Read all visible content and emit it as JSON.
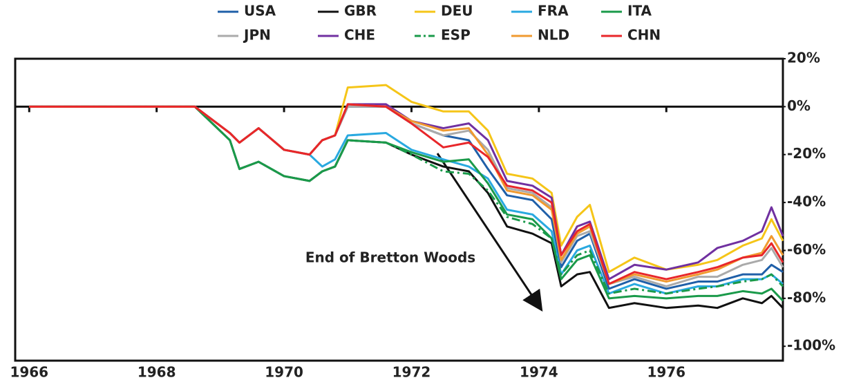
{
  "chart_data": {
    "type": "line",
    "annotation": "End of Bretton Woods",
    "x": [
      1966.0,
      1968.6,
      1969.15,
      1969.3,
      1969.6,
      1970.0,
      1970.4,
      1970.6,
      1970.8,
      1971.0,
      1971.6,
      1972.0,
      1972.5,
      1972.9,
      1973.2,
      1973.5,
      1973.9,
      1974.2,
      1974.35,
      1974.6,
      1974.8,
      1975.1,
      1975.5,
      1976.0,
      1976.5,
      1976.8,
      1977.2,
      1977.5,
      1977.65,
      1977.83
    ],
    "series": [
      {
        "name": "USA",
        "color": "#1f5fa8",
        "values": [
          0,
          0,
          -11,
          -15,
          -9,
          -18,
          -20,
          -14,
          -12,
          0,
          0,
          -7,
          -12,
          -14,
          -26,
          -37,
          -39,
          -47,
          -67,
          -56,
          -53,
          -76,
          -72,
          -76,
          -73,
          -73,
          -70,
          -70,
          -66,
          -69
        ]
      },
      {
        "name": "GBR",
        "color": "#111111",
        "values": [
          0,
          0,
          -14,
          -26,
          -23,
          -29,
          -31,
          -27,
          -25,
          -14,
          -15,
          -20,
          -25,
          -27,
          -36,
          -50,
          -53,
          -57,
          -75,
          -70,
          -69,
          -84,
          -82,
          -84,
          -83,
          -84,
          -80,
          -82,
          -79,
          -84
        ]
      },
      {
        "name": "DEU",
        "color": "#f5c518",
        "values": [
          0,
          0,
          -11,
          -15,
          -9,
          -18,
          -20,
          -14,
          -12,
          8,
          9,
          2,
          -2,
          -2,
          -10,
          -28,
          -30,
          -36,
          -58,
          -46,
          -41,
          -69,
          -63,
          -68,
          -66,
          -64,
          -58,
          -55,
          -47,
          -56
        ]
      },
      {
        "name": "FRA",
        "color": "#29a9e0",
        "values": [
          0,
          0,
          -11,
          -15,
          -9,
          -18,
          -20,
          -25,
          -22,
          -12,
          -11,
          -18,
          -22,
          -25,
          -30,
          -43,
          -45,
          -52,
          -70,
          -60,
          -58,
          -78,
          -74,
          -78,
          -75,
          -75,
          -72,
          -72,
          -70,
          -74
        ]
      },
      {
        "name": "ITA",
        "color": "#1a9a4a",
        "values": [
          0,
          0,
          -14,
          -26,
          -23,
          -29,
          -31,
          -27,
          -25,
          -14,
          -15,
          -19,
          -23,
          -22,
          -32,
          -45,
          -47,
          -55,
          -72,
          -64,
          -62,
          -80,
          -79,
          -80,
          -79,
          -79,
          -77,
          -78,
          -76,
          -81
        ]
      },
      {
        "name": "JPN",
        "color": "#aaaaaa",
        "values": [
          0,
          0,
          -11,
          -15,
          -9,
          -18,
          -20,
          -14,
          -12,
          0,
          0,
          -7,
          -12,
          -10,
          -18,
          -34,
          -36,
          -42,
          -65,
          -54,
          -52,
          -74,
          -71,
          -75,
          -71,
          -71,
          -66,
          -64,
          -59,
          -67
        ]
      },
      {
        "name": "CHE",
        "color": "#7030a0",
        "values": [
          0,
          0,
          -11,
          -15,
          -9,
          -18,
          -20,
          -14,
          -12,
          1,
          1,
          -6,
          -9,
          -7,
          -14,
          -31,
          -33,
          -38,
          -62,
          -50,
          -48,
          -72,
          -66,
          -68,
          -65,
          -59,
          -56,
          -52,
          -42,
          -54
        ]
      },
      {
        "name": "ESP",
        "color": "#1a9a4a",
        "dash": "dashdot",
        "values": [
          0,
          0,
          -14,
          -26,
          -23,
          -29,
          -31,
          -27,
          -25,
          -14,
          -15,
          -20,
          -27,
          -28,
          -35,
          -46,
          -49,
          -55,
          -70,
          -62,
          -60,
          -78,
          -76,
          -78,
          -76,
          -75,
          -73,
          -72,
          -70,
          -75
        ]
      },
      {
        "name": "NLD",
        "color": "#f09a30",
        "values": [
          0,
          0,
          -11,
          -15,
          -9,
          -18,
          -20,
          -14,
          -12,
          1,
          0,
          -6,
          -10,
          -9,
          -20,
          -35,
          -37,
          -43,
          -64,
          -53,
          -50,
          -74,
          -70,
          -73,
          -70,
          -68,
          -63,
          -61,
          -54,
          -62
        ]
      },
      {
        "name": "CHN",
        "color": "#e8262a",
        "values": [
          0,
          0,
          -11,
          -15,
          -9,
          -18,
          -20,
          -14,
          -12,
          1,
          0,
          -7,
          -17,
          -15,
          -21,
          -33,
          -35,
          -40,
          -62,
          -52,
          -49,
          -74,
          -69,
          -72,
          -69,
          -67,
          -63,
          -62,
          -57,
          -65
        ]
      }
    ],
    "xlim": [
      1965.78,
      1977.83
    ],
    "xticks": [
      1966,
      1968,
      1970,
      1972,
      1974,
      1976
    ],
    "ylim": [
      -106,
      20
    ],
    "yticks": [
      {
        "value": 20,
        "label": "20%"
      },
      {
        "value": 0,
        "label": "0%"
      },
      {
        "value": -20,
        "label": "-20%"
      },
      {
        "value": -40,
        "label": "-40%"
      },
      {
        "value": -60,
        "label": "-60%"
      },
      {
        "value": -80,
        "label": "-80%"
      },
      {
        "value": -100,
        "label": "-100%"
      }
    ],
    "y_axis_side": "right",
    "legend": "top"
  }
}
